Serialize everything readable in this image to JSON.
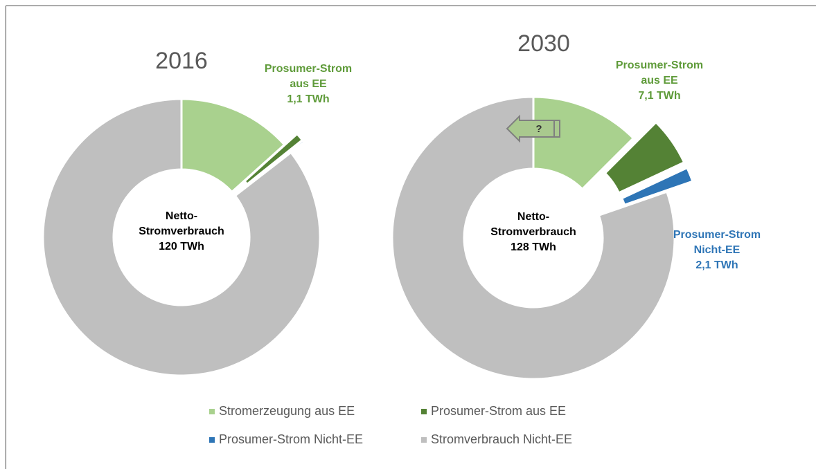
{
  "legend": {
    "categories": [
      "Stromerzeugung aus EE",
      "Prosumer-Strom aus EE",
      "Prosumer-Strom Nicht-EE",
      "Stromverbrauch Nicht-EE"
    ],
    "colors": [
      "#a9d18e",
      "#548235",
      "#2e75b6",
      "#bfbfbf"
    ]
  },
  "chart_data": [
    {
      "type": "pie",
      "title": "2016",
      "center_label": [
        "Netto-",
        "Stromverbrauch",
        "120 TWh"
      ],
      "values": [
        16,
        1.1,
        0.3,
        102.6
      ],
      "exploded": [
        false,
        true,
        true,
        false
      ],
      "segment_labels": [
        null,
        [
          "Prosumer-Strom",
          "aus EE"
        ],
        null,
        null
      ],
      "value_labels": [
        null,
        "1,1 TWh",
        null,
        null
      ]
    },
    {
      "type": "pie",
      "title": "2030",
      "center_label": [
        "Netto-",
        "Stromverbrauch",
        "128 TWh"
      ],
      "values": [
        16,
        7.1,
        2.1,
        102.8
      ],
      "exploded": [
        false,
        true,
        true,
        false
      ],
      "segment_labels": [
        null,
        [
          "Prosumer-Strom",
          "aus EE"
        ],
        [
          "Prosumer-Strom",
          "Nicht-EE"
        ],
        null
      ],
      "value_labels": [
        null,
        "7,1 TWh",
        "2,1 TWh",
        null
      ],
      "arrow_label": "?"
    }
  ]
}
